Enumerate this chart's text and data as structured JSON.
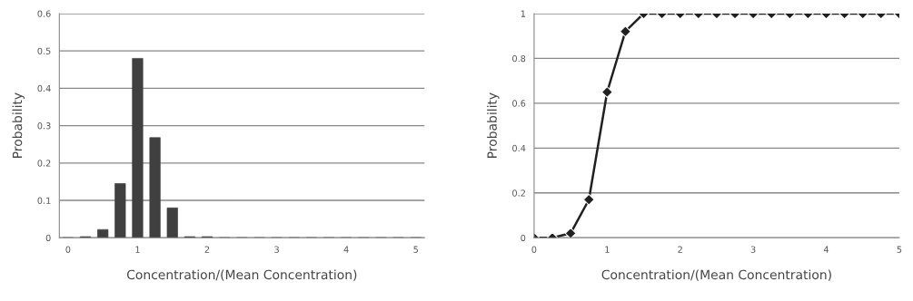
{
  "chart_data": [
    {
      "type": "bar",
      "xlabel": "Concentration/(Mean Concentration)",
      "ylabel": "Probability",
      "categories": [
        "0",
        null,
        null,
        null,
        "1",
        null,
        null,
        null,
        "2",
        null,
        null,
        null,
        "3",
        null,
        null,
        null,
        "4",
        null,
        null,
        null,
        "5"
      ],
      "values": [
        0,
        0.003,
        0.022,
        0.145,
        0.48,
        0.268,
        0.08,
        0.003,
        0.003,
        0,
        0,
        0,
        0,
        0,
        0,
        0,
        0,
        0,
        0,
        0,
        0
      ],
      "color": "#404040",
      "ylim": [
        0,
        0.6
      ],
      "yticks": [
        0,
        0.1,
        0.2,
        0.3,
        0.4,
        0.5,
        0.6
      ],
      "grid": "y"
    },
    {
      "type": "line",
      "xlabel": "Concentration/(Mean Concentration)",
      "ylabel": "Probability",
      "x": [
        0,
        0.25,
        0.5,
        0.75,
        1,
        1.25,
        1.5,
        1.75,
        2,
        2.25,
        2.5,
        2.75,
        3,
        3.25,
        3.5,
        3.75,
        4,
        4.25,
        4.5,
        4.75,
        5
      ],
      "values": [
        0,
        0,
        0.02,
        0.17,
        0.65,
        0.92,
        1,
        1,
        1,
        1,
        1,
        1,
        1,
        1,
        1,
        1,
        1,
        1,
        1,
        1,
        1
      ],
      "color": "#202020",
      "marker": "diamond",
      "line_style": "solid",
      "xlim": [
        0,
        5
      ],
      "xticks": [
        0,
        1,
        2,
        3,
        4,
        5
      ],
      "ylim": [
        0,
        1
      ],
      "yticks": [
        0,
        0.2,
        0.4,
        0.6,
        0.8,
        1
      ],
      "grid": "y"
    }
  ]
}
